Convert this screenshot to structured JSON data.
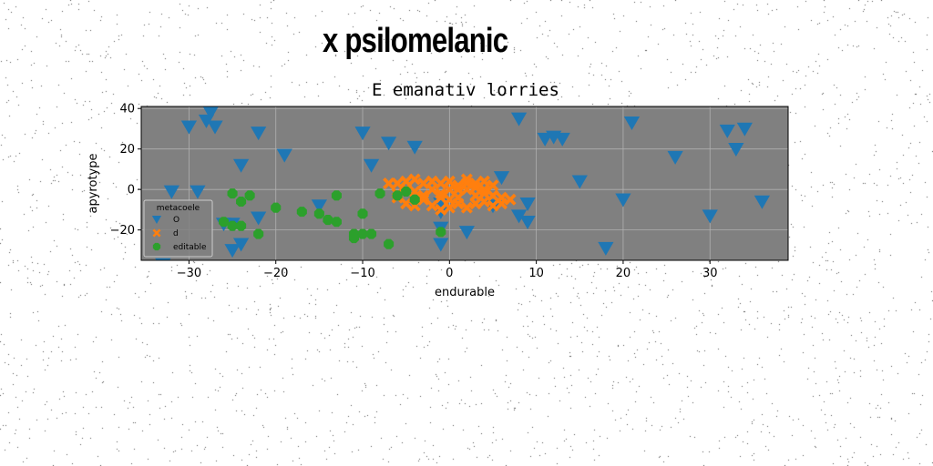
{
  "figure": {
    "title": "x psilomelanic"
  },
  "chart_data": {
    "type": "scatter",
    "title": "E emanativ lorries",
    "xlabel": "endurable",
    "ylabel": "apyrotype",
    "xlim": [
      -35.5,
      39
    ],
    "ylim": [
      -35,
      41
    ],
    "xticks": [
      -30,
      -20,
      -10,
      0,
      10,
      20,
      30
    ],
    "yticks": [
      -20,
      0,
      20,
      40
    ],
    "grid": true,
    "background": "#808080",
    "legend": {
      "title": "metacoele",
      "placement": "lower-left"
    },
    "series": [
      {
        "name": "O",
        "marker": "triangle-down",
        "color": "#1f77b4",
        "points": [
          [
            -33,
            -37
          ],
          [
            -32,
            -1
          ],
          [
            -30,
            31
          ],
          [
            -29,
            -1
          ],
          [
            -28,
            34
          ],
          [
            -27.5,
            38
          ],
          [
            -27,
            31
          ],
          [
            -26,
            -17
          ],
          [
            -25,
            -30
          ],
          [
            -25,
            -17
          ],
          [
            -24,
            12
          ],
          [
            -24,
            -27
          ],
          [
            -22,
            28
          ],
          [
            -22,
            -14
          ],
          [
            -19,
            17
          ],
          [
            -15,
            -8
          ],
          [
            -10,
            28
          ],
          [
            -9,
            12
          ],
          [
            -7,
            23
          ],
          [
            -4,
            21
          ],
          [
            -1,
            -7
          ],
          [
            -1,
            -11
          ],
          [
            -1,
            -19
          ],
          [
            -1,
            -27
          ],
          [
            2,
            -21
          ],
          [
            5,
            -8
          ],
          [
            6,
            6
          ],
          [
            8,
            35
          ],
          [
            8,
            -13
          ],
          [
            9,
            -7
          ],
          [
            9,
            -16
          ],
          [
            11,
            25
          ],
          [
            12,
            26
          ],
          [
            13,
            25
          ],
          [
            15,
            4
          ],
          [
            18,
            -29
          ],
          [
            20,
            -5
          ],
          [
            21,
            33
          ],
          [
            26,
            16
          ],
          [
            30,
            -13
          ],
          [
            32,
            29
          ],
          [
            33,
            20
          ],
          [
            34,
            30
          ],
          [
            36,
            -6
          ]
        ]
      },
      {
        "name": "d",
        "marker": "x",
        "color": "#ff7f0e",
        "points": [
          [
            -7,
            3
          ],
          [
            -6,
            -4
          ],
          [
            -6,
            3
          ],
          [
            -5,
            -7
          ],
          [
            -5,
            4
          ],
          [
            -5,
            0
          ],
          [
            -4,
            5
          ],
          [
            -4,
            -1
          ],
          [
            -4,
            -8
          ],
          [
            -3,
            3
          ],
          [
            -3,
            -5
          ],
          [
            -2,
            0
          ],
          [
            -2,
            4
          ],
          [
            -2,
            -8
          ],
          [
            -1,
            3
          ],
          [
            -1,
            -2
          ],
          [
            -1,
            -10
          ],
          [
            0,
            0
          ],
          [
            0,
            4
          ],
          [
            0,
            -5
          ],
          [
            0,
            -9
          ],
          [
            1,
            2
          ],
          [
            1,
            -4
          ],
          [
            1,
            -7
          ],
          [
            2,
            5
          ],
          [
            2,
            0
          ],
          [
            2,
            -9
          ],
          [
            3,
            3
          ],
          [
            3,
            -3
          ],
          [
            3,
            -7
          ],
          [
            4,
            4
          ],
          [
            4,
            0
          ],
          [
            4,
            -6
          ],
          [
            5,
            2
          ],
          [
            5,
            -3
          ],
          [
            5,
            -8
          ],
          [
            6,
            -4
          ],
          [
            6,
            -7
          ],
          [
            7,
            -5
          ],
          [
            -3,
            -3
          ],
          [
            -6,
            -2
          ],
          [
            3,
            1
          ],
          [
            1,
            0
          ],
          [
            -1,
            -4
          ],
          [
            2,
            3
          ],
          [
            4,
            -2
          ]
        ]
      },
      {
        "name": "editable",
        "marker": "octagon",
        "color": "#2ca02c",
        "points": [
          [
            -25,
            -2
          ],
          [
            -24,
            -6
          ],
          [
            -23,
            -3
          ],
          [
            -26,
            -16
          ],
          [
            -25,
            -18
          ],
          [
            -24,
            -18
          ],
          [
            -22,
            -22
          ],
          [
            -20,
            -9
          ],
          [
            -17,
            -11
          ],
          [
            -15,
            -12
          ],
          [
            -14,
            -15
          ],
          [
            -13,
            -16
          ],
          [
            -13,
            -3
          ],
          [
            -11,
            -22
          ],
          [
            -11,
            -24
          ],
          [
            -10,
            -22
          ],
          [
            -10,
            -12
          ],
          [
            -8,
            -2
          ],
          [
            -7,
            -27
          ],
          [
            -6,
            -3
          ],
          [
            -5,
            -1
          ],
          [
            -4,
            -5
          ],
          [
            -1,
            -21
          ],
          [
            -9,
            -22
          ]
        ]
      }
    ]
  }
}
